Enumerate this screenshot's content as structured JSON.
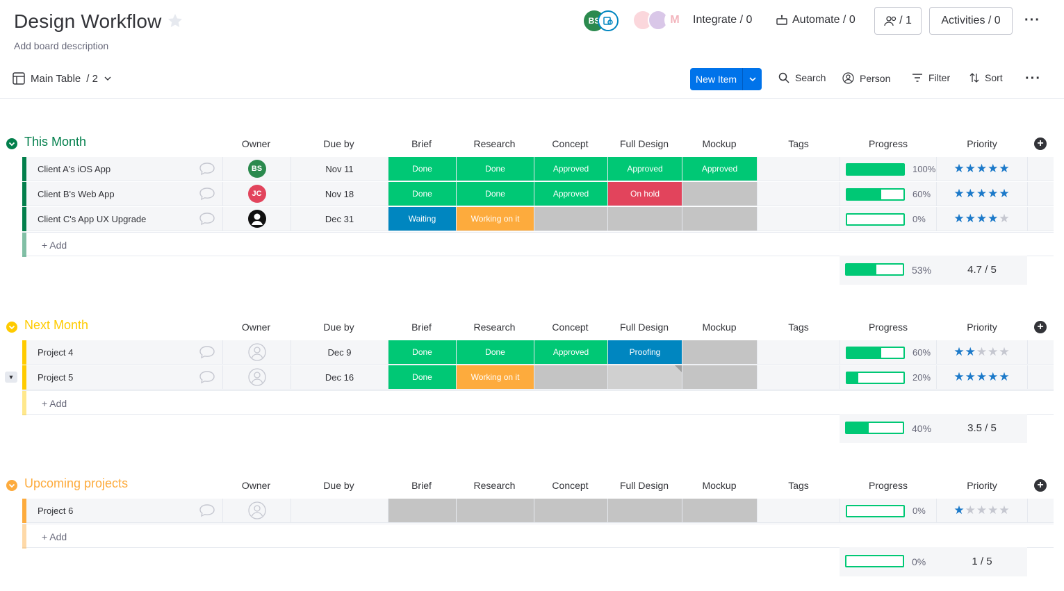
{
  "header": {
    "title": "Design Workflow",
    "description": "Add board description",
    "avatar_initials": "BS",
    "integrate_label": "Integrate / 0",
    "automate_label": "Automate / 0",
    "members_label": "/ 1",
    "activities_label": "Activities / 0"
  },
  "toolbar": {
    "view_label": "Main Table",
    "view_count": "/ 2",
    "new_item_label": "New Item",
    "search_label": "Search",
    "person_label": "Person",
    "filter_label": "Filter",
    "sort_label": "Sort"
  },
  "columns": {
    "owner": "Owner",
    "due": "Due by",
    "brief": "Brief",
    "research": "Research",
    "concept": "Concept",
    "full_design": "Full Design",
    "mockup": "Mockup",
    "tags": "Tags",
    "progress": "Progress",
    "priority": "Priority"
  },
  "add_label": "+ Add",
  "colors": {
    "done": "#00c875",
    "stuck": "#e2445c",
    "waiting": "#0086c0",
    "working": "#fdab3d",
    "empty": "#c4c4c4",
    "accent": "#0073ea"
  },
  "groups": [
    {
      "title": "This Month",
      "color": "#037f4c",
      "summary_progress": "53%",
      "summary_progress_value": 0.53,
      "summary_priority": "4.7 / 5",
      "rows": [
        {
          "name": "Client A's iOS App",
          "owner": "BS",
          "owner_color": "#2b8a4e",
          "due": "Nov 11",
          "brief": "Done",
          "research": "Done",
          "concept": "Approved",
          "full_design": "Approved",
          "mockup": "Approved",
          "progress": "100%",
          "progress_value": 1.0,
          "stars": 5
        },
        {
          "name": "Client B's Web App",
          "owner": "JC",
          "owner_color": "#e2445c",
          "due": "Nov 18",
          "brief": "Done",
          "research": "Done",
          "concept": "Approved",
          "full_design": "On hold",
          "mockup": "",
          "progress": "60%",
          "progress_value": 0.6,
          "stars": 5
        },
        {
          "name": "Client C's App UX Upgrade",
          "owner": "",
          "owner_color": "#111111",
          "due": "Dec 31",
          "brief": "Waiting",
          "research": "Working on it",
          "concept": "",
          "full_design": "",
          "mockup": "",
          "progress": "0%",
          "progress_value": 0,
          "stars": 4
        }
      ]
    },
    {
      "title": "Next Month",
      "color": "#ffcb00",
      "summary_progress": "40%",
      "summary_progress_value": 0.4,
      "summary_priority": "3.5 / 5",
      "rows": [
        {
          "name": "Project 4",
          "due": "Dec 9",
          "brief": "Done",
          "research": "Done",
          "concept": "Approved",
          "full_design": "Proofing",
          "mockup": "",
          "progress": "60%",
          "progress_value": 0.6,
          "stars": 2
        },
        {
          "name": "Project 5",
          "due": "Dec 16",
          "brief": "Done",
          "research": "Working on it",
          "concept": "",
          "full_design": "",
          "mockup": "",
          "progress": "20%",
          "progress_value": 0.2,
          "stars": 5
        }
      ]
    },
    {
      "title": "Upcoming projects",
      "color": "#fdab3d",
      "summary_progress": "0%",
      "summary_progress_value": 0,
      "summary_priority": "1 / 5",
      "rows": [
        {
          "name": "Project 6",
          "due": "",
          "brief": "",
          "research": "",
          "concept": "",
          "full_design": "",
          "mockup": "",
          "progress": "0%",
          "progress_value": 0,
          "stars": 1
        }
      ]
    }
  ]
}
